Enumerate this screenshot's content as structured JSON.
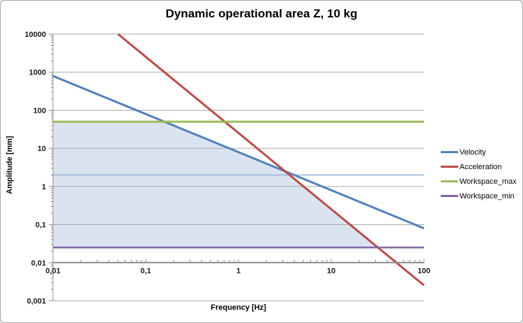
{
  "window": {
    "background": "#ffffff",
    "frame_border_color": "#a7a7a7"
  },
  "chart_data": {
    "type": "line",
    "title": "Dynamic operational area Z, 10 kg",
    "xlabel": "Frequency [Hz]",
    "ylabel": "Amplitude [mm]",
    "x_scale": "log",
    "y_scale": "log",
    "xlim": [
      0.01,
      100
    ],
    "ylim": [
      0.001,
      10000
    ],
    "x_axis_cross_y": 0.01,
    "grid": "horizontal-major-only",
    "gridline_color": "#a6a6a6",
    "axis_line_color": "#8c8c8c",
    "tick_label_color": "#1a1a1a",
    "x_ticks": [
      {
        "v": 0.01,
        "label": "0,01"
      },
      {
        "v": 0.1,
        "label": "0,1"
      },
      {
        "v": 1,
        "label": "1"
      },
      {
        "v": 10,
        "label": "10"
      },
      {
        "v": 100,
        "label": "100"
      }
    ],
    "y_ticks": [
      {
        "v": 10000,
        "label": "10000"
      },
      {
        "v": 1000,
        "label": "1000"
      },
      {
        "v": 100,
        "label": "100"
      },
      {
        "v": 10,
        "label": "10"
      },
      {
        "v": 1,
        "label": "1"
      },
      {
        "v": 0.1,
        "label": "0,1"
      },
      {
        "v": 0.01,
        "label": "0,01"
      },
      {
        "v": 0.001,
        "label": "0,001"
      }
    ],
    "series": [
      {
        "name": "amplitude-limit-2mm",
        "label": "",
        "color": "#95b3d7",
        "width": 1.5,
        "in_legend": false,
        "points": [
          [
            0.01,
            2
          ],
          [
            100,
            2
          ]
        ]
      },
      {
        "name": "velocity",
        "label": "Velocity",
        "color": "#4f81bd",
        "width": 3,
        "in_legend": true,
        "points": [
          [
            0.01,
            796
          ],
          [
            100,
            0.0796
          ]
        ]
      },
      {
        "name": "acceleration",
        "label": "Acceleration",
        "color": "#be4b48",
        "width": 3,
        "in_legend": true,
        "points": [
          [
            0.0503,
            10000
          ],
          [
            100,
            0.00253
          ]
        ]
      },
      {
        "name": "workspace_max",
        "label": "Workspace_max",
        "color": "#9bbb59",
        "width": 3,
        "in_legend": true,
        "points": [
          [
            0.01,
            50
          ],
          [
            100,
            50
          ]
        ]
      },
      {
        "name": "workspace_min",
        "label": "Workspace_min",
        "color": "#8064a2",
        "width": 2.5,
        "in_legend": true,
        "points": [
          [
            0.01,
            0.025
          ],
          [
            100,
            0.025
          ]
        ]
      }
    ],
    "operational_area": {
      "fill_color": "#dae4f1",
      "vertices": [
        [
          0.01,
          50
        ],
        [
          0.1592,
          50
        ],
        [
          3.183,
          2.5
        ],
        [
          31.83,
          0.025
        ],
        [
          0.01,
          0.025
        ]
      ]
    },
    "legend": {
      "position": "right",
      "entries": [
        {
          "label": "Velocity",
          "color": "#4f81bd"
        },
        {
          "label": "Acceleration",
          "color": "#be4b48"
        },
        {
          "label": "Workspace_max",
          "color": "#9bbb59"
        },
        {
          "label": "Workspace_min",
          "color": "#8064a2"
        }
      ]
    }
  }
}
